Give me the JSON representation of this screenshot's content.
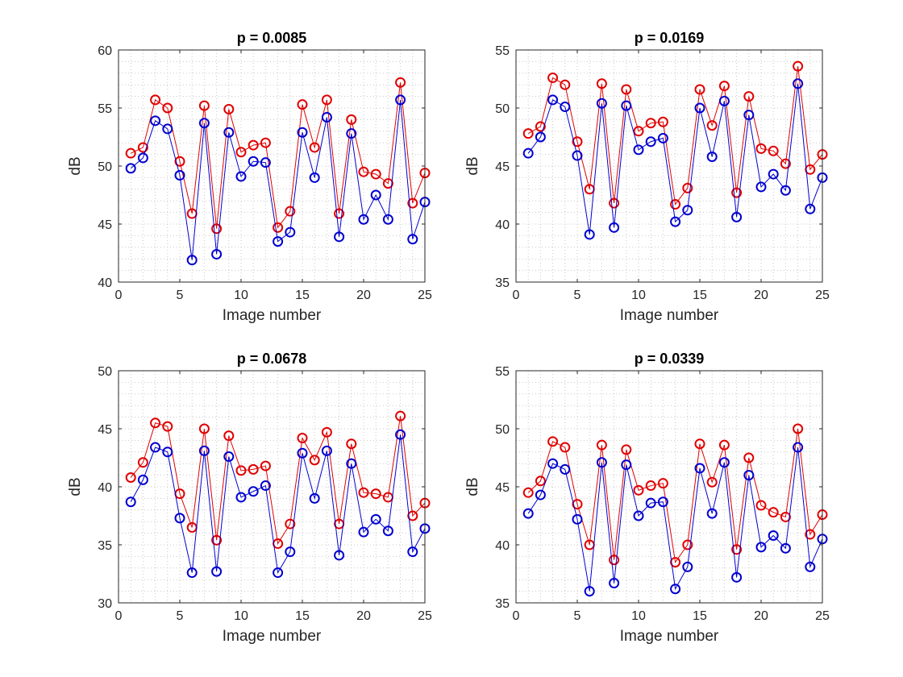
{
  "colors": {
    "series_red": "#e00000",
    "series_blue": "#0000d0",
    "axis": "#262626",
    "grid": "#c8c8c8"
  },
  "chart_data": [
    {
      "type": "line",
      "title": "p = 0.0085",
      "xlabel": "Image number",
      "ylabel": "dB",
      "xlim": [
        0,
        25
      ],
      "ylim": [
        40,
        60
      ],
      "xticks": [
        "0",
        "5",
        "10",
        "15",
        "20",
        "25"
      ],
      "yticks": [
        "40",
        "45",
        "50",
        "55",
        "60"
      ],
      "grid": "minor dotted",
      "x": [
        1,
        2,
        3,
        4,
        5,
        6,
        7,
        8,
        9,
        10,
        11,
        12,
        13,
        14,
        15,
        16,
        17,
        18,
        19,
        20,
        21,
        22,
        23,
        24,
        25
      ],
      "series": [
        {
          "color": "red",
          "marker": "circle",
          "values": [
            51.1,
            51.6,
            55.7,
            55.0,
            50.4,
            45.9,
            55.2,
            44.6,
            54.9,
            51.2,
            51.8,
            52.0,
            44.7,
            46.1,
            55.3,
            51.6,
            55.7,
            45.9,
            54.0,
            49.5,
            49.3,
            48.5,
            57.2,
            46.8,
            49.4
          ]
        },
        {
          "color": "blue",
          "marker": "circle",
          "values": [
            49.8,
            50.7,
            53.9,
            53.2,
            49.2,
            41.9,
            53.7,
            42.4,
            52.9,
            49.1,
            50.4,
            50.3,
            43.5,
            44.3,
            52.9,
            49.0,
            54.2,
            43.9,
            52.8,
            45.4,
            47.5,
            45.4,
            55.7,
            43.7,
            46.9
          ]
        }
      ]
    },
    {
      "type": "line",
      "title": "p = 0.0169",
      "xlabel": "Image number",
      "ylabel": "dB",
      "xlim": [
        0,
        25
      ],
      "ylim": [
        35,
        55
      ],
      "xticks": [
        "0",
        "5",
        "10",
        "15",
        "20",
        "25"
      ],
      "yticks": [
        "35",
        "40",
        "45",
        "50",
        "55"
      ],
      "grid": "minor dotted",
      "x": [
        1,
        2,
        3,
        4,
        5,
        6,
        7,
        8,
        9,
        10,
        11,
        12,
        13,
        14,
        15,
        16,
        17,
        18,
        19,
        20,
        21,
        22,
        23,
        24,
        25
      ],
      "series": [
        {
          "color": "red",
          "marker": "circle",
          "values": [
            47.8,
            48.4,
            52.6,
            52.0,
            47.1,
            43.0,
            52.1,
            41.8,
            51.6,
            48.0,
            48.7,
            48.8,
            41.7,
            43.1,
            51.6,
            48.5,
            51.9,
            42.7,
            51.0,
            46.5,
            46.3,
            45.2,
            53.6,
            44.7,
            46.0
          ]
        },
        {
          "color": "blue",
          "marker": "circle",
          "values": [
            46.1,
            47.5,
            50.7,
            50.1,
            45.9,
            39.1,
            50.4,
            39.7,
            50.2,
            46.4,
            47.1,
            47.4,
            40.2,
            41.2,
            50.0,
            45.8,
            50.6,
            40.6,
            49.4,
            43.2,
            44.3,
            42.9,
            52.1,
            41.3,
            44.0
          ]
        }
      ]
    },
    {
      "type": "line",
      "title": "p = 0.0678",
      "xlabel": "Image number",
      "ylabel": "dB",
      "xlim": [
        0,
        25
      ],
      "ylim": [
        30,
        50
      ],
      "xticks": [
        "0",
        "5",
        "10",
        "15",
        "20",
        "25"
      ],
      "yticks": [
        "30",
        "35",
        "40",
        "45",
        "50"
      ],
      "grid": "minor dotted",
      "x": [
        1,
        2,
        3,
        4,
        5,
        6,
        7,
        8,
        9,
        10,
        11,
        12,
        13,
        14,
        15,
        16,
        17,
        18,
        19,
        20,
        21,
        22,
        23,
        24,
        25
      ],
      "series": [
        {
          "color": "red",
          "marker": "circle",
          "values": [
            40.8,
            42.1,
            45.5,
            45.2,
            39.4,
            36.5,
            45.0,
            35.4,
            44.4,
            41.4,
            41.5,
            41.8,
            35.1,
            36.8,
            44.2,
            42.3,
            44.7,
            36.8,
            43.7,
            39.5,
            39.4,
            39.1,
            46.1,
            37.5,
            38.6
          ]
        },
        {
          "color": "blue",
          "marker": "circle",
          "values": [
            38.7,
            40.6,
            43.4,
            43.0,
            37.3,
            32.6,
            43.1,
            32.7,
            42.6,
            39.1,
            39.6,
            40.1,
            32.6,
            34.4,
            42.9,
            39.0,
            43.1,
            34.1,
            42.0,
            36.1,
            37.2,
            36.2,
            44.5,
            34.4,
            36.4
          ]
        }
      ]
    },
    {
      "type": "line",
      "title": "p = 0.0339",
      "xlabel": "Image number",
      "ylabel": "dB",
      "xlim": [
        0,
        25
      ],
      "ylim": [
        35,
        55
      ],
      "xticks": [
        "0",
        "5",
        "10",
        "15",
        "20",
        "25"
      ],
      "yticks": [
        "35",
        "40",
        "45",
        "50",
        "55"
      ],
      "grid": "minor dotted",
      "x": [
        1,
        2,
        3,
        4,
        5,
        6,
        7,
        8,
        9,
        10,
        11,
        12,
        13,
        14,
        15,
        16,
        17,
        18,
        19,
        20,
        21,
        22,
        23,
        24,
        25
      ],
      "series": [
        {
          "color": "red",
          "marker": "circle",
          "values": [
            44.5,
            45.5,
            48.9,
            48.4,
            43.5,
            40.0,
            48.6,
            38.7,
            48.2,
            44.7,
            45.1,
            45.3,
            38.5,
            40.0,
            48.7,
            45.4,
            48.6,
            39.6,
            47.5,
            43.4,
            42.8,
            42.4,
            50.0,
            40.9,
            42.6
          ]
        },
        {
          "color": "blue",
          "marker": "circle",
          "values": [
            42.7,
            44.3,
            47.0,
            46.5,
            42.2,
            36.0,
            47.1,
            36.7,
            46.9,
            42.5,
            43.6,
            43.7,
            36.2,
            38.1,
            46.6,
            42.7,
            47.1,
            37.2,
            46.0,
            39.8,
            40.8,
            39.7,
            48.4,
            38.1,
            40.5
          ]
        }
      ]
    }
  ]
}
